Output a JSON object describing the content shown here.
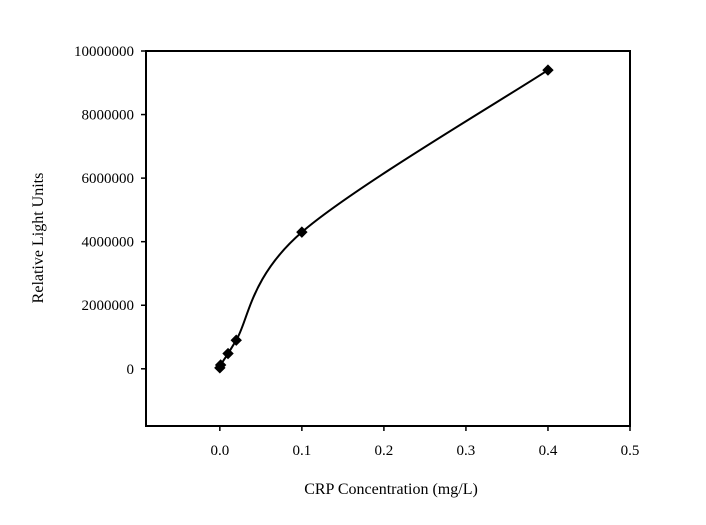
{
  "chart_data": {
    "type": "line",
    "title": "",
    "xlabel": "CRP Concentration (mg/L)",
    "ylabel": "Relative Light Units",
    "xlim": [
      -0.09,
      0.5
    ],
    "ylim": [
      -1800000,
      10000000
    ],
    "x_ticks": [
      0.0,
      0.1,
      0.2,
      0.3,
      0.4,
      0.5
    ],
    "x_tick_labels": [
      "0.0",
      "0.1",
      "0.2",
      "0.3",
      "0.4",
      "0.5"
    ],
    "y_ticks": [
      0,
      2000000,
      4000000,
      6000000,
      8000000,
      10000000
    ],
    "y_tick_labels": [
      "0",
      "2000000",
      "4000000",
      "6000000",
      "8000000",
      "10000000"
    ],
    "grid": false,
    "legend": "none",
    "series": [
      {
        "marker": "diamond",
        "x": [
          0.0,
          0.001,
          0.01,
          0.02,
          0.1,
          0.4
        ],
        "y": [
          30000,
          120000,
          480000,
          900000,
          4300000,
          9400000
        ]
      }
    ],
    "colors": {
      "line": "#000000",
      "marker": "#000000",
      "frame": "#000000",
      "background": "#ffffff"
    }
  }
}
